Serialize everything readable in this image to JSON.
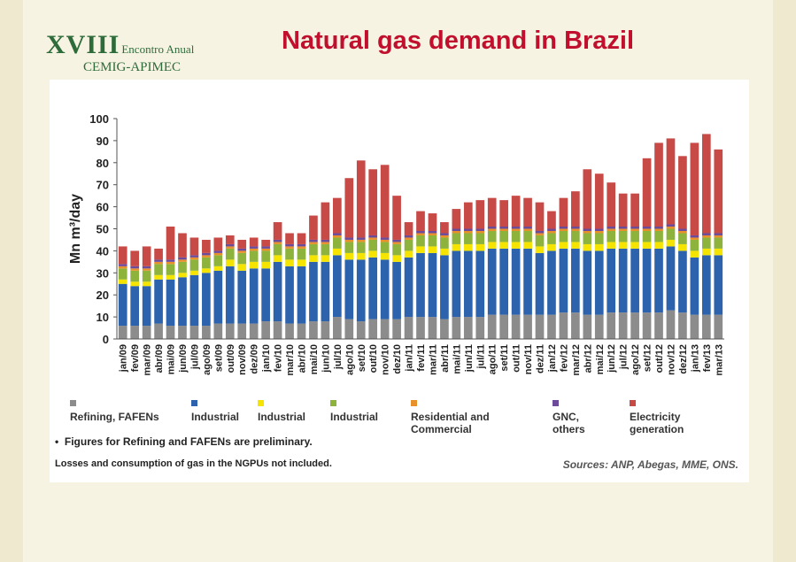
{
  "slide": {
    "title": "Natural gas demand in Brazil",
    "logo_numeral": "XVIII",
    "logo_line1": "Encontro Anual",
    "logo_line2": "CEMIG-APIMEC",
    "note_bullet": "•",
    "note1": "Figures for Refining and FAFENs are preliminary.",
    "note2": "Losses and consumption of gas in the NGPUs not included.",
    "sources": "Sources: ANP, Abegas, MME, ONS."
  },
  "chart_data": {
    "type": "bar",
    "stacked": true,
    "title": "",
    "xlabel": "",
    "ylabel": "Mn m³/day",
    "ylim": [
      0,
      100
    ],
    "yticks": [
      0,
      10,
      20,
      30,
      40,
      50,
      60,
      70,
      80,
      90,
      100
    ],
    "grid": false,
    "legend_position": "bottom",
    "categories": [
      "jan/09",
      "fev/09",
      "mar/09",
      "abr/09",
      "mai/09",
      "jun/09",
      "jul/09",
      "ago/09",
      "set/09",
      "out/09",
      "nov/09",
      "dez/09",
      "jan/10",
      "fev/10",
      "mar/10",
      "abr/10",
      "mai/10",
      "jun/10",
      "jul/10",
      "ago/10",
      "set/10",
      "out/10",
      "nov/10",
      "dez/10",
      "jan/11",
      "fev/11",
      "mar/11",
      "abr/11",
      "mai/11",
      "jun/11",
      "jul/11",
      "ago/11",
      "set/11",
      "out/11",
      "nov/11",
      "dez/11",
      "jan/12",
      "fev/12",
      "mar/12",
      "abr/12",
      "mai/12",
      "jun/12",
      "jul/12",
      "ago/12",
      "set/12",
      "out/12",
      "nov/12",
      "dez/12",
      "jan/13",
      "fev/13",
      "mar/13"
    ],
    "series": [
      {
        "name": "Refining, FAFENs",
        "color": "#8c8c8c",
        "values": [
          6,
          6,
          6,
          7,
          6,
          6,
          6,
          6,
          7,
          7,
          7,
          7,
          8,
          8,
          7,
          7,
          8,
          8,
          10,
          9,
          8,
          9,
          9,
          9,
          10,
          10,
          10,
          9,
          10,
          10,
          10,
          11,
          11,
          11,
          11,
          11,
          11,
          12,
          12,
          11,
          11,
          12,
          12,
          12,
          12,
          12,
          13,
          12,
          11,
          11,
          11
        ]
      },
      {
        "name": "Industrial",
        "color": "#2d63ad",
        "values": [
          19,
          18,
          18,
          20,
          21,
          22,
          23,
          24,
          24,
          26,
          24,
          25,
          24,
          27,
          26,
          26,
          27,
          27,
          28,
          27,
          28,
          28,
          27,
          26,
          27,
          29,
          29,
          29,
          30,
          30,
          30,
          30,
          30,
          30,
          30,
          28,
          29,
          29,
          29,
          29,
          29,
          29,
          29,
          29,
          29,
          29,
          29,
          28,
          26,
          27,
          27
        ]
      },
      {
        "name": "Industrial",
        "color": "#f5e400",
        "values": [
          2,
          2,
          2,
          2,
          2,
          2,
          2,
          2,
          2,
          3,
          3,
          3,
          3,
          3,
          3,
          3,
          3,
          3,
          3,
          3,
          3,
          3,
          3,
          3,
          3,
          3,
          3,
          3,
          3,
          3,
          3,
          3,
          3,
          3,
          3,
          3,
          3,
          3,
          3,
          3,
          3,
          3,
          3,
          3,
          3,
          3,
          3,
          3,
          3,
          3,
          3
        ]
      },
      {
        "name": "Industrial",
        "color": "#8db33c",
        "values": [
          5,
          5,
          5,
          5,
          5,
          5,
          5,
          5,
          5,
          5,
          5,
          5,
          5,
          5,
          5,
          5,
          5,
          5,
          5,
          5,
          5,
          5,
          5,
          5,
          5,
          5,
          5,
          5,
          5,
          5,
          5,
          5,
          5,
          5,
          5,
          5,
          5,
          5,
          5,
          5,
          5,
          5,
          5,
          5,
          5,
          5,
          5,
          5,
          5,
          5,
          5
        ]
      },
      {
        "name": "Residential and Commercial",
        "color": "#e8902a",
        "values": [
          1,
          1,
          1,
          1,
          1,
          1,
          1,
          1,
          1,
          1,
          1,
          1,
          1,
          1,
          1,
          1,
          1,
          1,
          1,
          1,
          1,
          1,
          1,
          1,
          1,
          1,
          1,
          1,
          1,
          1,
          1,
          1,
          1,
          1,
          1,
          1,
          1,
          1,
          1,
          1,
          1,
          1,
          1,
          1,
          1,
          1,
          1,
          1,
          1,
          1,
          1
        ]
      },
      {
        "name": "GNC, others",
        "color": "#6b4b9a",
        "values": [
          1,
          1,
          1,
          1,
          1,
          1,
          1,
          1,
          1,
          1,
          1,
          1,
          1,
          1,
          1,
          1,
          1,
          1,
          1,
          1,
          1,
          1,
          1,
          1,
          1,
          1,
          1,
          1,
          1,
          1,
          1,
          1,
          1,
          1,
          1,
          1,
          1,
          1,
          1,
          1,
          1,
          1,
          1,
          1,
          1,
          1,
          1,
          1,
          1,
          1,
          1
        ]
      },
      {
        "name": "Electricity generation",
        "color": "#c84a47",
        "values": [
          8,
          7,
          9,
          5,
          15,
          11,
          8,
          6,
          6,
          4,
          4,
          4,
          3,
          8,
          5,
          5,
          11,
          17,
          16,
          27,
          35,
          30,
          33,
          20,
          6,
          9,
          8,
          5,
          9,
          12,
          13,
          13,
          12,
          14,
          13,
          13,
          8,
          13,
          16,
          27,
          25,
          20,
          15,
          15,
          31,
          38,
          39,
          33,
          42,
          45,
          38
        ]
      }
    ]
  }
}
